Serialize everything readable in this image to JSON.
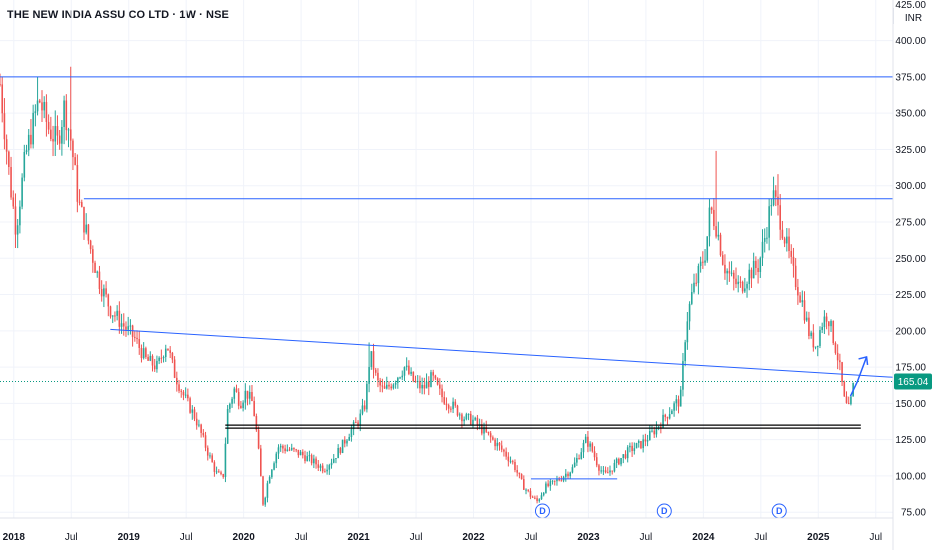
{
  "header": {
    "title": "THE NEW INDIA ASSU CO LTD · 1W · NSE"
  },
  "currency": "INR",
  "colors": {
    "up": "#26a69a",
    "down": "#ef5350",
    "trendline": "#2962ff",
    "support": "#000000",
    "price_tag_bg": "#089981",
    "grid": "#f0f3fa",
    "dividend_marker": "#2962ff"
  },
  "chart_data": {
    "type": "candlestick",
    "interval": "1W",
    "exchange": "NSE",
    "yaxis": {
      "ticks": [
        75,
        100,
        125,
        150,
        175,
        200,
        225,
        250,
        275,
        300,
        325,
        350,
        375,
        400
      ],
      "top_partial_tick": 425,
      "range": [
        71,
        428
      ]
    },
    "xaxis": {
      "ticks": [
        {
          "label": "2018",
          "t": 2018.0
        },
        {
          "label": "Jul",
          "t": 2018.5
        },
        {
          "label": "2019",
          "t": 2019.0
        },
        {
          "label": "Jul",
          "t": 2019.5
        },
        {
          "label": "2020",
          "t": 2020.0
        },
        {
          "label": "Jul",
          "t": 2020.5
        },
        {
          "label": "2021",
          "t": 2021.0
        },
        {
          "label": "Jul",
          "t": 2021.5
        },
        {
          "label": "2022",
          "t": 2022.0
        },
        {
          "label": "Jul",
          "t": 2022.5
        },
        {
          "label": "2023",
          "t": 2023.0
        },
        {
          "label": "Jul",
          "t": 2023.5
        },
        {
          "label": "2024",
          "t": 2024.0
        },
        {
          "label": "Jul",
          "t": 2024.5
        },
        {
          "label": "2025",
          "t": 2025.0
        },
        {
          "label": "Jul",
          "t": 2025.5
        }
      ],
      "range": [
        2017.88,
        2025.65
      ]
    },
    "last_price": {
      "value": 165.04,
      "label": "165.04"
    },
    "price_path": [
      [
        2017.88,
        370
      ],
      [
        2017.97,
        300
      ],
      [
        2018.02,
        270
      ],
      [
        2018.1,
        320
      ],
      [
        2018.22,
        360
      ],
      [
        2018.3,
        340
      ],
      [
        2018.38,
        330
      ],
      [
        2018.44,
        355
      ],
      [
        2018.5,
        330
      ],
      [
        2018.56,
        290
      ],
      [
        2018.65,
        262
      ],
      [
        2018.74,
        235
      ],
      [
        2018.84,
        215
      ],
      [
        2018.94,
        205
      ],
      [
        2019.05,
        195
      ],
      [
        2019.15,
        180
      ],
      [
        2019.25,
        175
      ],
      [
        2019.33,
        192
      ],
      [
        2019.4,
        170
      ],
      [
        2019.48,
        155
      ],
      [
        2019.58,
        140
      ],
      [
        2019.68,
        118
      ],
      [
        2019.76,
        102
      ],
      [
        2019.82,
        98
      ],
      [
        2019.86,
        145
      ],
      [
        2019.92,
        160
      ],
      [
        2019.97,
        150
      ],
      [
        2020.02,
        158
      ],
      [
        2020.08,
        150
      ],
      [
        2020.12,
        125
      ],
      [
        2020.17,
        80
      ],
      [
        2020.22,
        100
      ],
      [
        2020.3,
        120
      ],
      [
        2020.4,
        118
      ],
      [
        2020.5,
        115
      ],
      [
        2020.6,
        110
      ],
      [
        2020.7,
        105
      ],
      [
        2020.78,
        112
      ],
      [
        2020.85,
        120
      ],
      [
        2020.92,
        130
      ],
      [
        2021.0,
        138
      ],
      [
        2021.06,
        150
      ],
      [
        2021.1,
        185
      ],
      [
        2021.16,
        165
      ],
      [
        2021.22,
        158
      ],
      [
        2021.3,
        165
      ],
      [
        2021.4,
        175
      ],
      [
        2021.48,
        165
      ],
      [
        2021.56,
        160
      ],
      [
        2021.64,
        168
      ],
      [
        2021.72,
        155
      ],
      [
        2021.82,
        148
      ],
      [
        2021.92,
        140
      ],
      [
        2022.0,
        138
      ],
      [
        2022.1,
        130
      ],
      [
        2022.2,
        122
      ],
      [
        2022.28,
        115
      ],
      [
        2022.35,
        108
      ],
      [
        2022.42,
        95
      ],
      [
        2022.48,
        88
      ],
      [
        2022.55,
        82
      ],
      [
        2022.62,
        92
      ],
      [
        2022.7,
        95
      ],
      [
        2022.78,
        100
      ],
      [
        2022.86,
        105
      ],
      [
        2022.92,
        115
      ],
      [
        2022.98,
        125
      ],
      [
        2023.03,
        118
      ],
      [
        2023.08,
        108
      ],
      [
        2023.14,
        100
      ],
      [
        2023.2,
        105
      ],
      [
        2023.28,
        112
      ],
      [
        2023.36,
        118
      ],
      [
        2023.46,
        122
      ],
      [
        2023.56,
        130
      ],
      [
        2023.66,
        140
      ],
      [
        2023.76,
        150
      ],
      [
        2023.8,
        152
      ],
      [
        2023.85,
        205
      ],
      [
        2023.9,
        225
      ],
      [
        2023.96,
        240
      ],
      [
        2024.02,
        255
      ],
      [
        2024.06,
        285
      ],
      [
        2024.12,
        270
      ],
      [
        2024.18,
        245
      ],
      [
        2024.25,
        235
      ],
      [
        2024.32,
        230
      ],
      [
        2024.4,
        240
      ],
      [
        2024.48,
        245
      ],
      [
        2024.55,
        270
      ],
      [
        2024.6,
        295
      ],
      [
        2024.66,
        280
      ],
      [
        2024.72,
        260
      ],
      [
        2024.78,
        240
      ],
      [
        2024.86,
        220
      ],
      [
        2024.93,
        195
      ],
      [
        2024.98,
        190
      ],
      [
        2025.03,
        205
      ],
      [
        2025.08,
        212
      ],
      [
        2025.13,
        195
      ],
      [
        2025.18,
        178
      ],
      [
        2025.23,
        150
      ],
      [
        2025.27,
        145
      ],
      [
        2025.31,
        165
      ]
    ],
    "spikes": [
      {
        "t": 2018.5,
        "high": 382
      },
      {
        "t": 2018.2,
        "high": 375
      },
      {
        "t": 2024.12,
        "high": 324
      },
      {
        "t": 2024.64,
        "high": 308
      },
      {
        "t": 2021.1,
        "high": 192
      }
    ],
    "horizontal_lines": [
      {
        "name": "resistance-375",
        "price": 375,
        "from": 2017.88,
        "to": 2025.65,
        "color": "#2962ff"
      },
      {
        "name": "resistance-291",
        "price": 291,
        "from": 2018.61,
        "to": 2025.65,
        "color": "#2962ff"
      },
      {
        "name": "support-134",
        "price": 134,
        "from": 2019.84,
        "to": 2025.37,
        "color": "#000000",
        "double": true
      },
      {
        "name": "box-top-98",
        "price": 98,
        "from": 2022.5,
        "to": 2023.25,
        "color": "#2962ff"
      }
    ],
    "trendlines": [
      {
        "name": "descending-trendline",
        "from": [
          2018.84,
          201
        ],
        "to": [
          2025.65,
          168
        ],
        "color": "#2962ff"
      }
    ],
    "projection_arrow": [
      [
        2025.28,
        155
      ],
      [
        2025.34,
        165
      ],
      [
        2025.42,
        182
      ]
    ],
    "dividend_markers": [
      {
        "label": "D",
        "t": 2022.6
      },
      {
        "label": "D",
        "t": 2023.66
      },
      {
        "label": "D",
        "t": 2024.66
      }
    ]
  }
}
